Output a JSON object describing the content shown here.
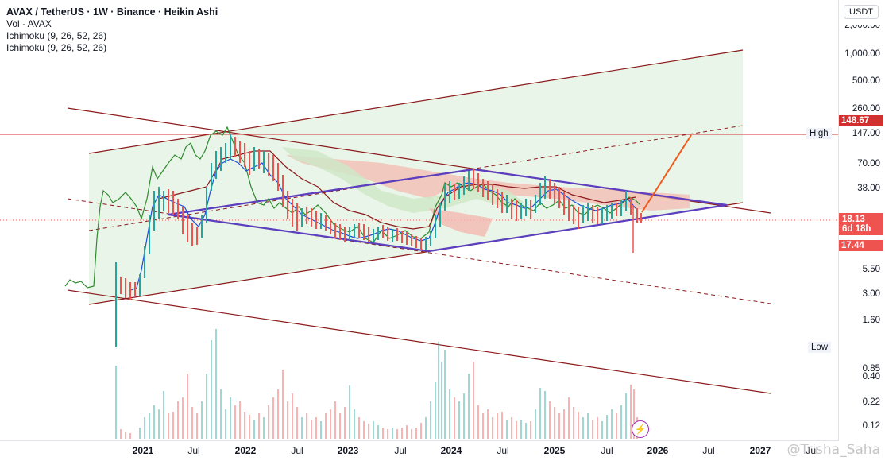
{
  "legend": {
    "title": "AVAX / TetherUS · 1W · Binance · Heikin Ashi",
    "vol": "Vol · AVAX",
    "ichimoku_1": "Ichimoku (9, 26, 52, 26)",
    "ichimoku_2": "Ichimoku (9, 26, 52, 26)"
  },
  "price_axis": {
    "currency": "USDT",
    "ticks": [
      "2,000.00",
      "1,000.00",
      "500.00",
      "260.00",
      "70.00",
      "38.00",
      "5.50",
      "3.00",
      "1.60",
      "0.40",
      "0.22",
      "0.12"
    ],
    "current_price": "18.13",
    "countdown": "6d 18h",
    "low_tag": "17.44",
    "horizontal_line_tag": "148.67",
    "high_label": "High",
    "high_value": "147.00",
    "low_label": "Low",
    "low_value": "0.85"
  },
  "time_axis": {
    "labels": [
      {
        "text": "2021",
        "year": true
      },
      {
        "text": "Jul",
        "year": false
      },
      {
        "text": "2022",
        "year": true
      },
      {
        "text": "Jul",
        "year": false
      },
      {
        "text": "2023",
        "year": true
      },
      {
        "text": "Jul",
        "year": false
      },
      {
        "text": "2024",
        "year": true
      },
      {
        "text": "Jul",
        "year": false
      },
      {
        "text": "2025",
        "year": true
      },
      {
        "text": "Jul",
        "year": false
      },
      {
        "text": "2026",
        "year": true
      },
      {
        "text": "Jul",
        "year": false
      },
      {
        "text": "2027",
        "year": true
      },
      {
        "text": "Jul",
        "year": false
      }
    ]
  },
  "watermark": "@Trisha_Saha",
  "colors": {
    "up": "#26a69a",
    "down": "#ef5350",
    "channel": "#8b1a1a",
    "triangle": "#5b3fbf",
    "projection": "#f05a1a",
    "price_tag": "#ef5350",
    "cloud_green": "#c8e6c9",
    "cloud_red": "#f4b9b0"
  }
}
